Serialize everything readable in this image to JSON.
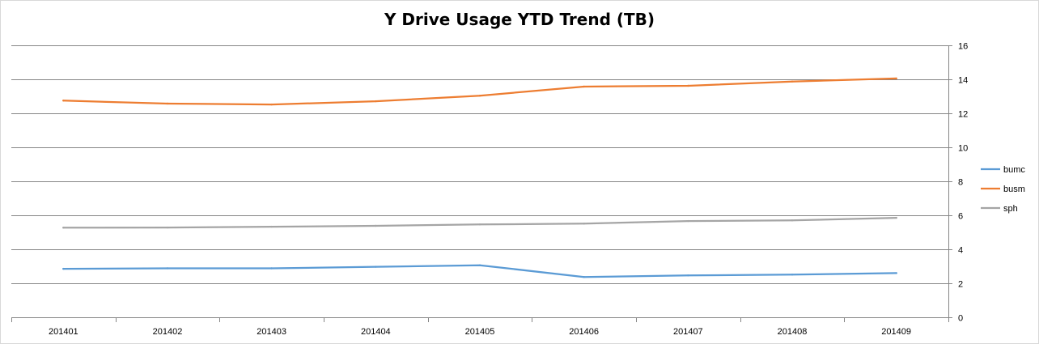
{
  "chart_data": {
    "type": "line",
    "title": "Y Drive Usage YTD Trend (TB)",
    "xlabel": "",
    "ylabel": "",
    "categories": [
      "201401",
      "201402",
      "201403",
      "201404",
      "201405",
      "201406",
      "201407",
      "201408",
      "201409"
    ],
    "ylim": [
      0,
      16
    ],
    "yticks": [
      0,
      2,
      4,
      6,
      8,
      10,
      12,
      14,
      16
    ],
    "y_axis_side": "right",
    "grid": true,
    "legend_position": "right",
    "series": [
      {
        "name": "bumc",
        "color": "#5b9bd5",
        "values": [
          2.85,
          2.88,
          2.88,
          2.97,
          3.06,
          2.37,
          2.46,
          2.51,
          2.6
        ]
      },
      {
        "name": "busm",
        "color": "#ed7d31",
        "values": [
          12.75,
          12.57,
          12.52,
          12.71,
          13.04,
          13.57,
          13.62,
          13.87,
          14.05
        ]
      },
      {
        "name": "sph",
        "color": "#a5a5a5",
        "values": [
          5.27,
          5.28,
          5.33,
          5.38,
          5.46,
          5.51,
          5.66,
          5.7,
          5.85
        ]
      }
    ]
  }
}
